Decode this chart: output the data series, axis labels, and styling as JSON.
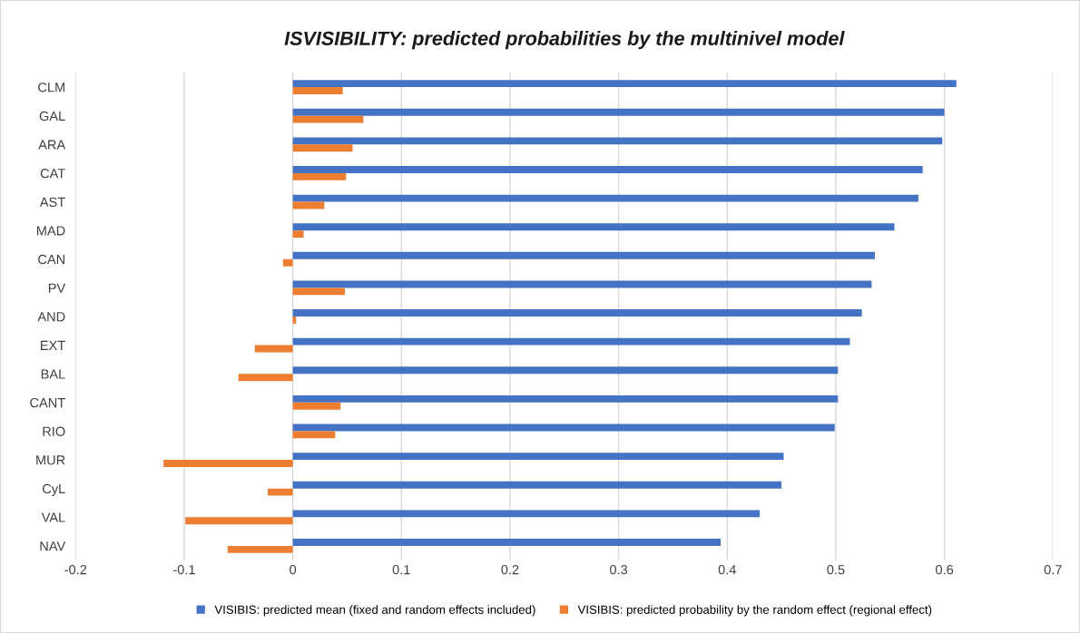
{
  "chart_data": {
    "type": "bar",
    "orientation": "horizontal",
    "title": "ISVISIBILITY: predicted probabilities by the multinivel model",
    "categories": [
      "CLM",
      "GAL",
      "ARA",
      "CAT",
      "AST",
      "MAD",
      "CAN",
      "PV",
      "AND",
      "EXT",
      "BAL",
      "CANT",
      "RIO",
      "MUR",
      "CyL",
      "VAL",
      "NAV"
    ],
    "series": [
      {
        "name": "VISIBIS: predicted mean (fixed and random effects included)",
        "color": "#4472c4",
        "values": [
          0.611,
          0.6,
          0.598,
          0.58,
          0.576,
          0.554,
          0.536,
          0.533,
          0.524,
          0.513,
          0.502,
          0.502,
          0.499,
          0.452,
          0.45,
          0.43,
          0.394
        ]
      },
      {
        "name": "VISIBIS: predicted probability by the random effect (regional effect)",
        "color": "#ed7d31",
        "values": [
          0.046,
          0.065,
          0.055,
          0.049,
          0.029,
          0.01,
          -0.009,
          0.048,
          0.003,
          -0.035,
          -0.05,
          0.044,
          0.039,
          -0.119,
          -0.023,
          -0.099,
          -0.06
        ]
      }
    ],
    "xlim": [
      -0.2,
      0.7
    ],
    "xticks": [
      -0.2,
      -0.1,
      0,
      0.1,
      0.2,
      0.3,
      0.4,
      0.5,
      0.6,
      0.7
    ],
    "grid": "x",
    "legend": "bottom"
  }
}
